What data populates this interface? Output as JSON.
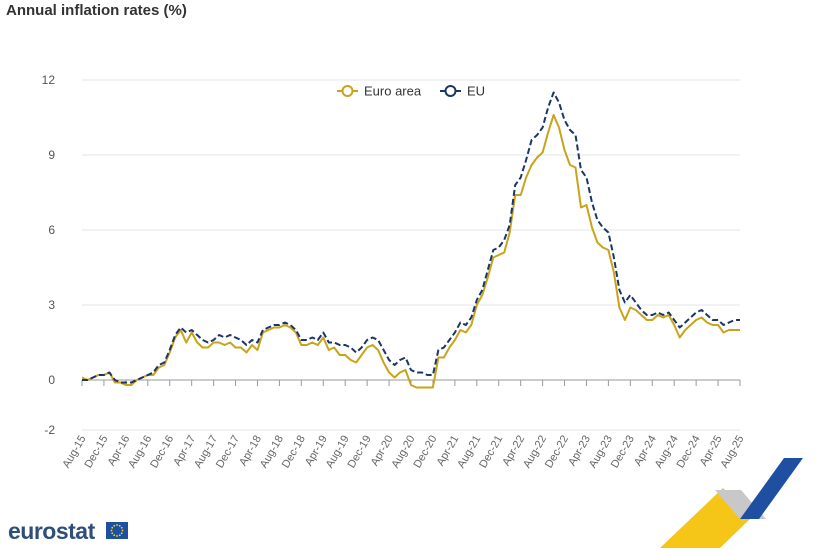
{
  "title": "Annual inflation rates (%)",
  "brand": {
    "logo_text": "eurostat",
    "colors": {
      "euro_area": "#c9a31a",
      "eu": "#1a3568",
      "grid": "#e6e6e6"
    }
  },
  "chart_data": {
    "type": "line",
    "title": "Annual inflation rates (%)",
    "xlabel": "",
    "ylabel": "",
    "ylim": [
      -2,
      12
    ],
    "yticks": [
      -2,
      0,
      3,
      6,
      9,
      12
    ],
    "grid": true,
    "legend_position": "top-center",
    "x_tick_labels": [
      "Aug-15",
      "Dec-15",
      "Apr-16",
      "Aug-16",
      "Dec-16",
      "Apr-17",
      "Aug-17",
      "Dec-17",
      "Apr-18",
      "Aug-18",
      "Dec-18",
      "Apr-19",
      "Aug-19",
      "Dec-19",
      "Apr-20",
      "Aug-20",
      "Dec-20",
      "Apr-21",
      "Aug-21",
      "Dec-21",
      "Apr-22",
      "Aug-22",
      "Dec-22",
      "Apr-23",
      "Aug-23",
      "Dec-23",
      "Apr-24",
      "Aug-24",
      "Dec-24",
      "Apr-25",
      "Aug-25"
    ],
    "x_start": "Aug-15",
    "x_end": "Aug-25",
    "series": [
      {
        "name": "Euro area",
        "style": "solid",
        "color": "#c9a31a",
        "values": [
          0.1,
          0.0,
          0.1,
          0.2,
          0.2,
          0.3,
          -0.1,
          -0.1,
          -0.2,
          -0.2,
          0.0,
          0.1,
          0.2,
          0.2,
          0.5,
          0.6,
          1.1,
          1.7,
          2.0,
          1.5,
          1.9,
          1.5,
          1.3,
          1.3,
          1.5,
          1.5,
          1.4,
          1.5,
          1.3,
          1.3,
          1.1,
          1.4,
          1.2,
          1.9,
          2.0,
          2.1,
          2.1,
          2.2,
          2.1,
          1.9,
          1.4,
          1.4,
          1.5,
          1.4,
          1.7,
          1.2,
          1.3,
          1.0,
          1.0,
          0.8,
          0.7,
          1.0,
          1.3,
          1.4,
          1.2,
          0.7,
          0.3,
          0.1,
          0.3,
          0.4,
          -0.2,
          -0.3,
          -0.3,
          -0.3,
          -0.3,
          0.9,
          0.9,
          1.3,
          1.6,
          2.0,
          1.9,
          2.2,
          3.0,
          3.4,
          4.1,
          4.9,
          5.0,
          5.1,
          5.9,
          7.4,
          7.4,
          8.1,
          8.6,
          8.9,
          9.1,
          9.9,
          10.6,
          10.1,
          9.2,
          8.6,
          8.5,
          6.9,
          7.0,
          6.1,
          5.5,
          5.3,
          5.2,
          4.3,
          2.9,
          2.4,
          2.9,
          2.8,
          2.6,
          2.4,
          2.4,
          2.6,
          2.5,
          2.6,
          2.2,
          1.7,
          2.0,
          2.2,
          2.4,
          2.5,
          2.3,
          2.2,
          2.2,
          1.9,
          2.0,
          2.0,
          2.0
        ],
        "visible_points": "monthly Aug-15 to Aug-25"
      },
      {
        "name": "EU",
        "style": "dashed",
        "color": "#1a3568",
        "values": [
          0.0,
          0.0,
          0.1,
          0.2,
          0.2,
          0.3,
          0.0,
          -0.1,
          -0.1,
          -0.1,
          0.0,
          0.1,
          0.2,
          0.3,
          0.6,
          0.7,
          1.2,
          1.8,
          2.1,
          1.9,
          2.0,
          1.8,
          1.6,
          1.5,
          1.6,
          1.8,
          1.7,
          1.8,
          1.7,
          1.6,
          1.4,
          1.6,
          1.5,
          2.0,
          2.1,
          2.2,
          2.2,
          2.3,
          2.2,
          2.0,
          1.6,
          1.6,
          1.7,
          1.6,
          1.9,
          1.5,
          1.5,
          1.4,
          1.4,
          1.3,
          1.1,
          1.3,
          1.6,
          1.7,
          1.6,
          1.2,
          0.8,
          0.6,
          0.8,
          0.9,
          0.4,
          0.3,
          0.3,
          0.2,
          0.2,
          1.2,
          1.3,
          1.6,
          1.9,
          2.3,
          2.2,
          2.5,
          3.2,
          3.6,
          4.4,
          5.2,
          5.3,
          5.6,
          6.2,
          7.8,
          8.1,
          8.8,
          9.6,
          9.8,
          10.1,
          10.9,
          11.5,
          11.1,
          10.4,
          10.0,
          9.8,
          8.4,
          8.1,
          7.1,
          6.4,
          6.1,
          5.9,
          4.9,
          3.6,
          3.1,
          3.4,
          3.1,
          2.8,
          2.6,
          2.6,
          2.7,
          2.6,
          2.7,
          2.4,
          2.1,
          2.3,
          2.5,
          2.7,
          2.8,
          2.6,
          2.4,
          2.4,
          2.2,
          2.3,
          2.4,
          2.4
        ]
      }
    ]
  }
}
